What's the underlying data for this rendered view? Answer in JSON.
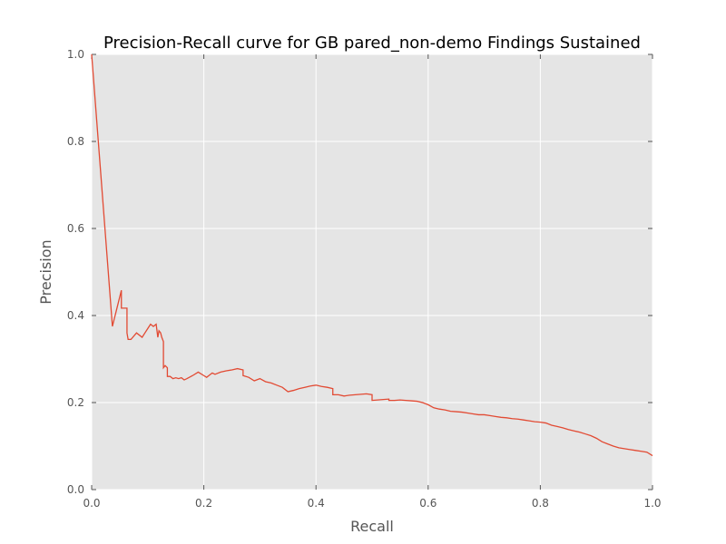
{
  "chart_data": {
    "type": "line",
    "title": "Precision-Recall curve for GB pared_non-demo Findings Sustained",
    "xlabel": "Recall",
    "ylabel": "Precision",
    "xlim": [
      0.0,
      1.0
    ],
    "ylim": [
      0.0,
      1.0
    ],
    "xticks": [
      "0.0",
      "0.2",
      "0.4",
      "0.6",
      "0.8",
      "1.0"
    ],
    "yticks": [
      "0.0",
      "0.2",
      "0.4",
      "0.6",
      "0.8",
      "1.0"
    ],
    "grid": true,
    "series": [
      {
        "color": "#e24a33",
        "x": [
          0.0,
          0.037,
          0.053,
          0.053,
          0.063,
          0.063,
          0.065,
          0.07,
          0.08,
          0.09,
          0.095,
          0.1,
          0.105,
          0.11,
          0.115,
          0.118,
          0.12,
          0.123,
          0.125,
          0.128,
          0.128,
          0.131,
          0.135,
          0.135,
          0.14,
          0.145,
          0.15,
          0.155,
          0.16,
          0.165,
          0.17,
          0.18,
          0.19,
          0.2,
          0.205,
          0.21,
          0.215,
          0.22,
          0.23,
          0.24,
          0.25,
          0.26,
          0.27,
          0.27,
          0.28,
          0.29,
          0.3,
          0.31,
          0.32,
          0.33,
          0.34,
          0.35,
          0.36,
          0.37,
          0.38,
          0.39,
          0.4,
          0.41,
          0.42,
          0.43,
          0.43,
          0.44,
          0.45,
          0.46,
          0.47,
          0.48,
          0.49,
          0.5,
          0.5,
          0.51,
          0.52,
          0.53,
          0.53,
          0.54,
          0.55,
          0.56,
          0.57,
          0.58,
          0.59,
          0.6,
          0.61,
          0.62,
          0.63,
          0.64,
          0.65,
          0.66,
          0.67,
          0.68,
          0.69,
          0.7,
          0.71,
          0.72,
          0.73,
          0.74,
          0.75,
          0.76,
          0.77,
          0.78,
          0.79,
          0.8,
          0.81,
          0.82,
          0.83,
          0.84,
          0.85,
          0.86,
          0.87,
          0.88,
          0.89,
          0.9,
          0.91,
          0.92,
          0.93,
          0.94,
          0.95,
          0.96,
          0.97,
          0.98,
          0.99,
          1.0
        ],
        "y": [
          1.0,
          0.375,
          0.458,
          0.417,
          0.417,
          0.36,
          0.345,
          0.345,
          0.36,
          0.35,
          0.36,
          0.37,
          0.38,
          0.375,
          0.38,
          0.35,
          0.365,
          0.36,
          0.35,
          0.34,
          0.28,
          0.285,
          0.28,
          0.26,
          0.26,
          0.255,
          0.257,
          0.255,
          0.257,
          0.252,
          0.255,
          0.262,
          0.27,
          0.262,
          0.258,
          0.263,
          0.268,
          0.265,
          0.27,
          0.273,
          0.275,
          0.278,
          0.275,
          0.262,
          0.258,
          0.25,
          0.255,
          0.248,
          0.245,
          0.24,
          0.235,
          0.225,
          0.228,
          0.232,
          0.235,
          0.238,
          0.24,
          0.237,
          0.235,
          0.232,
          0.218,
          0.218,
          0.215,
          0.217,
          0.218,
          0.219,
          0.22,
          0.218,
          0.205,
          0.206,
          0.207,
          0.208,
          0.205,
          0.205,
          0.206,
          0.205,
          0.204,
          0.203,
          0.2,
          0.195,
          0.188,
          0.185,
          0.183,
          0.18,
          0.179,
          0.178,
          0.176,
          0.174,
          0.172,
          0.172,
          0.17,
          0.168,
          0.166,
          0.165,
          0.163,
          0.162,
          0.16,
          0.158,
          0.156,
          0.155,
          0.153,
          0.148,
          0.145,
          0.142,
          0.138,
          0.135,
          0.132,
          0.128,
          0.124,
          0.118,
          0.11,
          0.105,
          0.1,
          0.096,
          0.094,
          0.092,
          0.09,
          0.088,
          0.086,
          0.078
        ]
      }
    ]
  }
}
